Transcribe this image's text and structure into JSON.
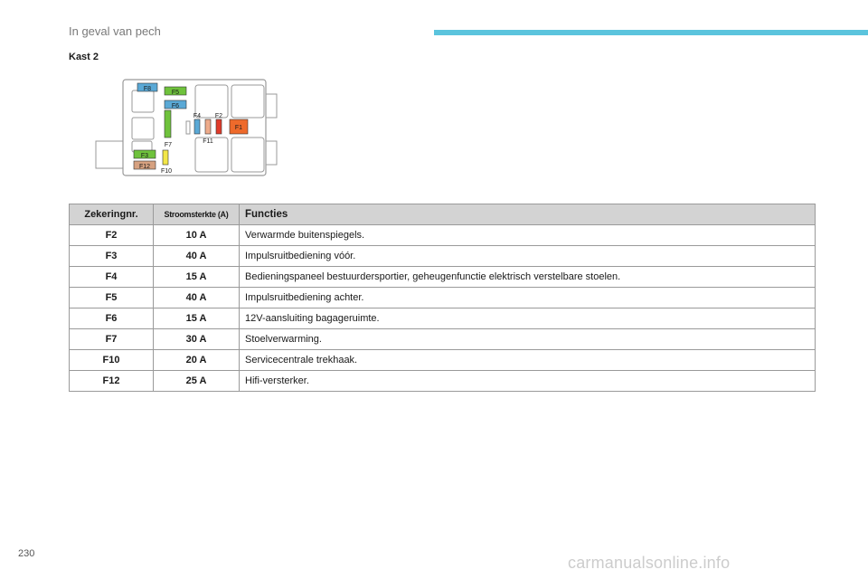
{
  "header": {
    "section_title": "In geval van pech",
    "accent_color": "#5bc4dd"
  },
  "subheading": "Kast 2",
  "diagram": {
    "labels": {
      "f1": "F1",
      "f2": "F2",
      "f3": "F3",
      "f4": "F4",
      "f5": "F5",
      "f6": "F6",
      "f7": "F7",
      "f8": "F8",
      "f10": "F10",
      "f11": "F11",
      "f12": "F12"
    },
    "colors": {
      "blue": "#5aa9d6",
      "green": "#6fc23c",
      "orange": "#ee6a2b",
      "red": "#e03b2a",
      "yellow": "#f2e648",
      "salmon": "#eeab8a",
      "tan": "#d6a180"
    }
  },
  "table": {
    "headers": [
      "Zekeringnr.",
      "Stroomsterkte (A)",
      "Functies"
    ],
    "rows": [
      {
        "no": "F2",
        "amp": "10 A",
        "fn": "Verwarmde buitenspiegels."
      },
      {
        "no": "F3",
        "amp": "40 A",
        "fn": "Impulsruitbediening vóór."
      },
      {
        "no": "F4",
        "amp": "15 A",
        "fn": "Bedieningspaneel bestuurdersportier, geheugenfunctie elektrisch verstelbare stoelen."
      },
      {
        "no": "F5",
        "amp": "40 A",
        "fn": "Impulsruitbediening achter."
      },
      {
        "no": "F6",
        "amp": "15 A",
        "fn": "12V-aansluiting bagageruimte."
      },
      {
        "no": "F7",
        "amp": "30 A",
        "fn": "Stoelverwarming."
      },
      {
        "no": "F10",
        "amp": "20 A",
        "fn": "Servicecentrale trekhaak."
      },
      {
        "no": "F12",
        "amp": "25 A",
        "fn": "Hifi-versterker."
      }
    ]
  },
  "footer": {
    "page_number": "230",
    "watermark": "carmanualsonline.info"
  }
}
